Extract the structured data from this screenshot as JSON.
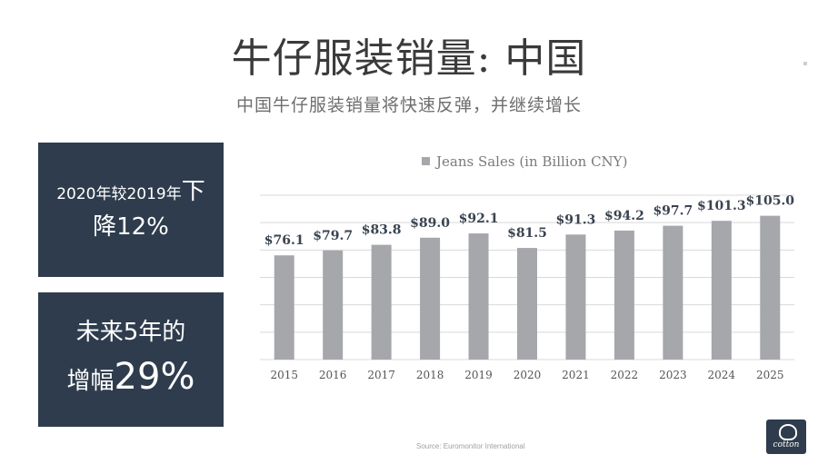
{
  "header": {
    "title": "牛仔服装销量: 中国",
    "subtitle": "中国牛仔服装销量将快速反弹，并继续增长"
  },
  "stat_boxes": [
    {
      "line1": "2020年较2019年",
      "line1_big": "下",
      "line2": "降12%"
    },
    {
      "line1": "未来5年的",
      "line2_text": "增幅",
      "line2_pct": "29%"
    }
  ],
  "source": "Source: Euromonitor International",
  "logo": {
    "text": "cotton"
  },
  "colors": {
    "bar": "#a5a7ab",
    "box": "#2e3c4d",
    "grid": "#d9d9d9"
  },
  "chart_data": {
    "type": "bar",
    "categories": [
      "2015",
      "2016",
      "2017",
      "2018",
      "2019",
      "2020",
      "2021",
      "2022",
      "2023",
      "2024",
      "2025"
    ],
    "series": [
      {
        "name": "Jeans Sales (in Billion CNY)",
        "values": [
          76.1,
          79.7,
          83.8,
          89.0,
          92.1,
          81.5,
          91.3,
          94.2,
          97.7,
          101.3,
          105.0
        ],
        "labels": [
          "$76.1",
          "$79.7",
          "$83.8",
          "$89.0",
          "$92.1",
          "$81.5",
          "$91.3",
          "$94.2",
          "$97.7",
          "$101.3",
          "$105.0"
        ]
      }
    ],
    "legend": "Jeans Sales (in Billion CNY)",
    "ylim": [
      0,
      120
    ],
    "grid": true
  }
}
